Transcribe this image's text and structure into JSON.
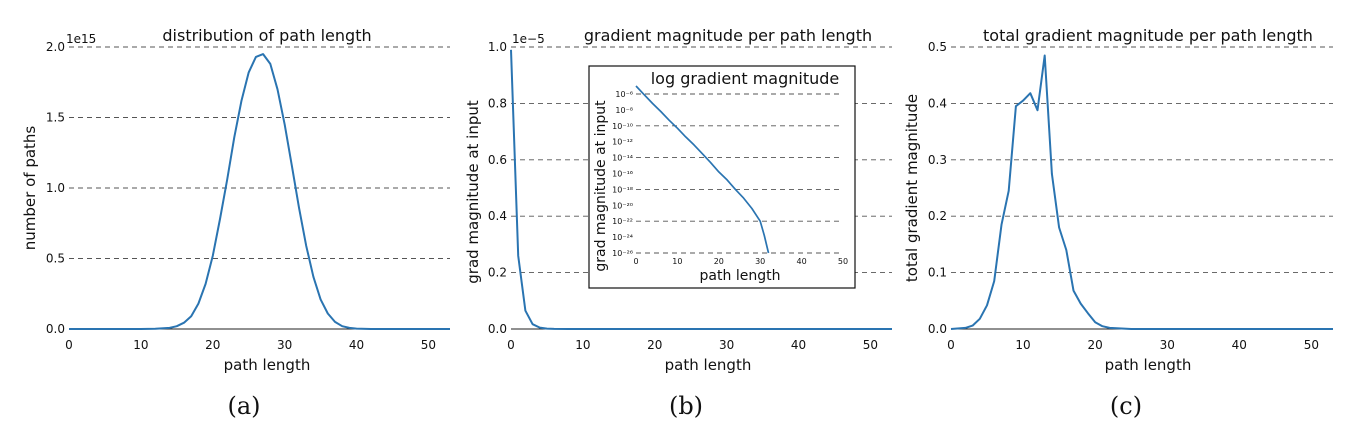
{
  "chart_data": [
    {
      "type": "line",
      "id": "a",
      "title": "distribution of path length",
      "xlabel": "path length",
      "ylabel": "number of paths",
      "scale_label": "1e15",
      "caption": "(a)",
      "xlim": [
        0,
        53
      ],
      "ylim": [
        0,
        2.0
      ],
      "xticks": [
        0,
        10,
        20,
        30,
        40,
        50
      ],
      "yticks": [
        0.0,
        0.5,
        1.0,
        1.5,
        2.0
      ],
      "ytick_labels": [
        "0.0",
        "0.5",
        "1.0",
        "1.5",
        "2.0"
      ],
      "grid": "horizontal dashed",
      "x": [
        0,
        5,
        10,
        12,
        14,
        15,
        16,
        17,
        18,
        19,
        20,
        21,
        22,
        23,
        24,
        25,
        26,
        27,
        28,
        29,
        30,
        31,
        32,
        33,
        34,
        35,
        36,
        37,
        38,
        39,
        40,
        42,
        45,
        50,
        54
      ],
      "y": [
        0,
        0,
        0,
        0.002,
        0.008,
        0.02,
        0.045,
        0.09,
        0.18,
        0.32,
        0.52,
        0.78,
        1.06,
        1.36,
        1.62,
        1.82,
        1.93,
        1.95,
        1.88,
        1.7,
        1.45,
        1.16,
        0.86,
        0.59,
        0.37,
        0.21,
        0.11,
        0.05,
        0.02,
        0.008,
        0.003,
        0,
        0,
        0,
        0
      ]
    },
    {
      "type": "line",
      "id": "b",
      "title": "gradient magnitude per path length",
      "xlabel": "path length",
      "ylabel": "grad magnitude at input",
      "scale_label": "1e−5",
      "caption": "(b)",
      "xlim": [
        0,
        53
      ],
      "ylim": [
        0,
        1.0
      ],
      "xticks": [
        0,
        10,
        20,
        30,
        40,
        50
      ],
      "yticks": [
        0.0,
        0.2,
        0.4,
        0.6,
        0.8,
        1.0
      ],
      "ytick_labels": [
        "0.0",
        "0.2",
        "0.4",
        "0.6",
        "0.8",
        "1.0"
      ],
      "grid": "horizontal dashed",
      "x": [
        0,
        1,
        2,
        3,
        4,
        5,
        6,
        8,
        10,
        20,
        30,
        40,
        54
      ],
      "y": [
        0.99,
        0.26,
        0.065,
        0.017,
        0.005,
        0.0015,
        0.0005,
        0,
        0,
        0,
        0,
        0,
        0
      ],
      "inset": {
        "title": "log gradient magnitude",
        "xlabel": "path length",
        "ylabel": "grad magnitude at input",
        "yscale": "log",
        "xlim": [
          -1,
          55
        ],
        "ylim_exp": [
          -26,
          -5
        ],
        "xticks": [
          0,
          10,
          20,
          30,
          40,
          50
        ],
        "ytick_exps": [
          -6,
          -8,
          -10,
          -12,
          -14,
          -16,
          -18,
          -20,
          -22,
          -24,
          -26
        ],
        "ytick_labels": [
          "10⁻⁶",
          "10⁻⁸",
          "10⁻¹⁰",
          "10⁻¹²",
          "10⁻¹⁴",
          "10⁻¹⁶",
          "10⁻¹⁸",
          "10⁻²⁰",
          "10⁻²²",
          "10⁻²⁴",
          "10⁻²⁶"
        ],
        "grid": "horizontal dashed",
        "x": [
          0,
          2,
          4,
          6,
          8,
          10,
          12,
          14,
          16,
          18,
          20,
          22,
          24,
          26,
          28,
          30,
          31,
          32
        ],
        "y_exp": [
          -5.0,
          -6.1,
          -7.2,
          -8.2,
          -9.3,
          -10.3,
          -11.4,
          -12.4,
          -13.5,
          -14.6,
          -15.8,
          -16.8,
          -18.0,
          -19.1,
          -20.4,
          -22.0,
          -23.8,
          -26.0
        ]
      }
    },
    {
      "type": "line",
      "id": "c",
      "title": "total gradient magnitude per path length",
      "xlabel": "path length",
      "ylabel": "total gradient magnitude",
      "caption": "(c)",
      "xlim": [
        0,
        53
      ],
      "ylim": [
        0,
        0.5
      ],
      "xticks": [
        0,
        10,
        20,
        30,
        40,
        50
      ],
      "yticks": [
        0.0,
        0.1,
        0.2,
        0.3,
        0.4,
        0.5
      ],
      "ytick_labels": [
        "0.0",
        "0.1",
        "0.2",
        "0.3",
        "0.4",
        "0.5"
      ],
      "grid": "horizontal dashed",
      "x": [
        0,
        2,
        3,
        4,
        5,
        6,
        7,
        8,
        9,
        10,
        11,
        12,
        13,
        14,
        15,
        16,
        17,
        18,
        19,
        20,
        21,
        22,
        25,
        30,
        54
      ],
      "y": [
        0,
        0.002,
        0.006,
        0.018,
        0.042,
        0.085,
        0.185,
        0.245,
        0.395,
        0.405,
        0.418,
        0.388,
        0.485,
        0.275,
        0.18,
        0.14,
        0.068,
        0.045,
        0.028,
        0.012,
        0.005,
        0.002,
        0,
        0,
        0
      ]
    }
  ]
}
